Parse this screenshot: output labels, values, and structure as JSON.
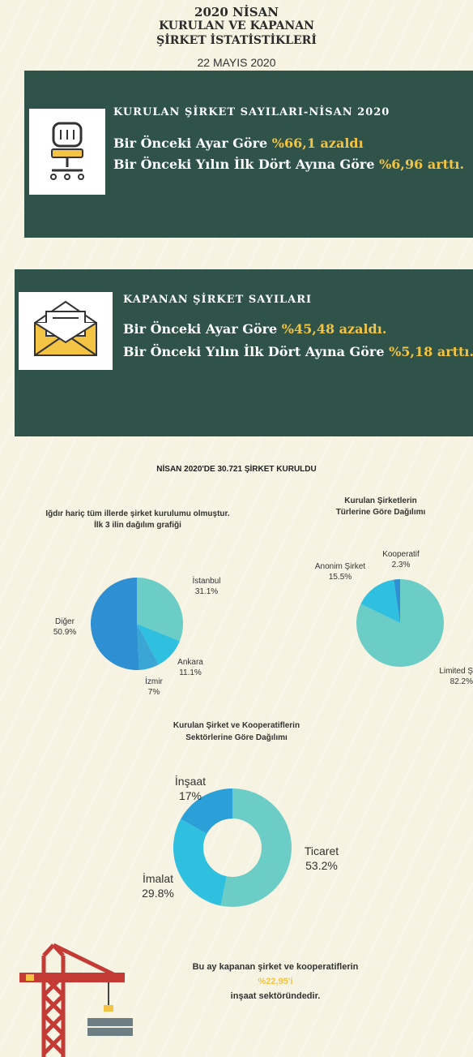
{
  "header": {
    "line1": "2020 NİSAN",
    "line2": "KURULAN VE KAPANAN",
    "line3": "ŞİRKET İSTATİSTİKLERİ",
    "date": "22 MAYIS 2020"
  },
  "founded_panel": {
    "title": "KURULAN ŞİRKET SAYILARI-NİSAN 2020",
    "line1_text": "Bir Önceki Ayar Göre",
    "line1_value": "%66,1 azaldı",
    "line2_text": "Bir Önceki Yılın İlk Dört Ayına Göre",
    "line2_value": "%6,96 arttı.",
    "icon": "office-chair-icon"
  },
  "closed_panel": {
    "title": "KAPANAN ŞİRKET SAYILARI",
    "line1_text": "Bir Önceki Ayar Göre",
    "line1_value": "%45,48 azaldı.",
    "line2_text": "Bir Önceki Yılın İlk Dört Ayına Göre",
    "line2_value": "%5,18 arttı.",
    "icon": "open-envelope-icon"
  },
  "section_title": "NİSAN 2020'DE 30.721 ŞİRKET KURULDU",
  "colors": {
    "panel": "#2f5249",
    "highlight": "#f3c443",
    "teal_light": "#6ccdc6",
    "cyan": "#2ec0de",
    "blue": "#2e8fd2",
    "crane_red": "#c43a34"
  },
  "chart_data": [
    {
      "type": "pie",
      "title_line1": "Iğdır hariç tüm illerde şirket kurulumu olmuştur.",
      "title_line2": "İlk 3 ilin dağılım grafiği",
      "categories": [
        "İstanbul",
        "Ankara",
        "İzmir",
        "Diğer"
      ],
      "values": [
        31.1,
        11.1,
        7,
        50.9
      ],
      "value_labels": [
        "31.1%",
        "11.1%",
        "7%",
        "50.9%"
      ],
      "colors": [
        "#6ccdc6",
        "#2ec0de",
        "#3aa6d6",
        "#2e8fd2"
      ]
    },
    {
      "type": "pie",
      "title_line1": "Kurulan Şirketlerin",
      "title_line2": "Türlerine Göre Dağılımı",
      "categories": [
        "Limited Ş",
        "Anonim Şirket",
        "Kooperatif"
      ],
      "values": [
        82.2,
        15.5,
        2.3
      ],
      "value_labels": [
        "82.2%",
        "15.5%",
        "2.3%"
      ],
      "colors": [
        "#6ccdc6",
        "#2ec0de",
        "#2e8fd2"
      ]
    },
    {
      "type": "pie",
      "subtype": "donut",
      "title_line1": "Kurulan Şirket ve Kooperatiflerin",
      "title_line2": "Sektörlerine Göre Dağılımı",
      "categories": [
        "Ticaret",
        "İmalat",
        "İnşaat"
      ],
      "values": [
        53.2,
        29.8,
        17
      ],
      "value_labels": [
        "53.2%",
        "29.8%",
        "17%"
      ],
      "colors": [
        "#6ccdc6",
        "#2ec0de",
        "#2b9fd8"
      ]
    }
  ],
  "footer": {
    "line1": "Bu ay kapanan şirket ve kooperatiflerin",
    "line2": "%22,95'i",
    "line3": "inşaat sektöründedir.",
    "icon": "construction-crane-icon"
  }
}
